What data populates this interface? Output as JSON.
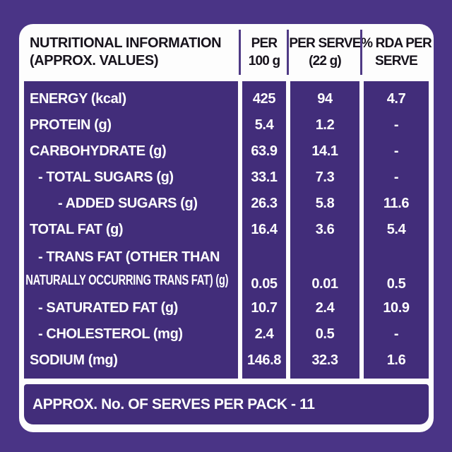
{
  "colors": {
    "outer_background": "#4a3486",
    "panel_purple": "#422d7a",
    "card_white": "#fdfdfd",
    "header_text": "#17131c",
    "body_text": "#ffffff",
    "header_divider": "#4f3a85"
  },
  "header": {
    "label_line1": "NUTRITIONAL INFORMATION",
    "label_line2": "(APPROX. VALUES)",
    "per100_line1": "PER",
    "per100_line2": "100 g",
    "serve_line1": "PER SERVE",
    "serve_line2": "(22 g)",
    "rda_line1": "% RDA PER",
    "rda_line2": "SERVE"
  },
  "rows": [
    {
      "label": "ENERGY (kcal)",
      "per_100g": "425",
      "per_serve": "94",
      "rda": "4.7"
    },
    {
      "label": "PROTEIN (g)",
      "per_100g": "5.4",
      "per_serve": "1.2",
      "rda": "-"
    },
    {
      "label": "CARBOHYDRATE (g)",
      "per_100g": "63.9",
      "per_serve": "14.1",
      "rda": "-"
    },
    {
      "label": "- TOTAL SUGARS (g)",
      "per_100g": "33.1",
      "per_serve": "7.3",
      "rda": "-"
    },
    {
      "label": "- ADDED SUGARS (g)",
      "per_100g": "26.3",
      "per_serve": "5.8",
      "rda": "11.6"
    },
    {
      "label": "TOTAL FAT (g)",
      "per_100g": "16.4",
      "per_serve": "3.6",
      "rda": "5.4"
    },
    {
      "label_line1": "- TRANS FAT (OTHER THAN",
      "label_line2": "NATURALLY OCCURRING TRANS FAT) (g)",
      "per_100g": "0.05",
      "per_serve": "0.01",
      "rda": "0.5"
    },
    {
      "label": "- SATURATED FAT (g)",
      "per_100g": "10.7",
      "per_serve": "2.4",
      "rda": "10.9"
    },
    {
      "label": "- CHOLESTEROL (mg)",
      "per_100g": "2.4",
      "per_serve": "0.5",
      "rda": "-"
    },
    {
      "label": "SODIUM (mg)",
      "per_100g": "146.8",
      "per_serve": "32.3",
      "rda": "1.6"
    }
  ],
  "footer": {
    "text": "APPROX. No. OF SERVES PER PACK - 11"
  }
}
